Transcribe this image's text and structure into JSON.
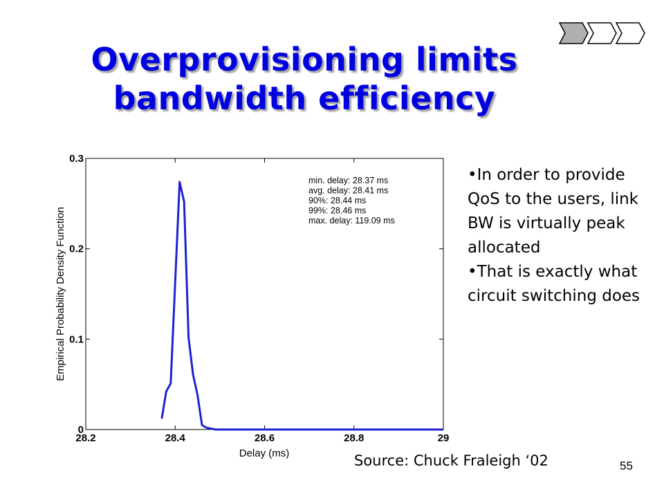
{
  "slide": {
    "title_line1": "Overprovisioning limits",
    "title_line2": "bandwidth efficiency",
    "bullets": [
      "•In order to provide QoS to the users, link BW is virtually peak allocated",
      "•That is exactly what circuit switching does"
    ],
    "source": "Source: Chuck Fraleigh ‘02",
    "page_number": "55",
    "nav_icons": [
      "chevron-block-icon",
      "chevron-block-icon",
      "chevron-block-icon"
    ],
    "colors": {
      "title": "#0000e0",
      "curve": "#2020d0",
      "nav_active": "#b0b0b0"
    }
  },
  "chart_data": {
    "type": "line",
    "xlabel": "Delay (ms)",
    "ylabel": "Empirical Probability Density Function",
    "xlim": [
      28.2,
      29
    ],
    "ylim": [
      0,
      0.3
    ],
    "xticks": [
      "28.2",
      "28.4",
      "28.6",
      "28.8",
      "29"
    ],
    "yticks": [
      "0",
      "0.1",
      "0.2",
      "0.3"
    ],
    "grid": false,
    "annotations": [
      "min. delay: 28.37 ms",
      "avg. delay: 28.41 ms",
      "90%: 28.44 ms",
      "99%: 28.46 ms",
      "max. delay: 119.09 ms"
    ],
    "x": [
      28.37,
      28.38,
      28.39,
      28.41,
      28.42,
      28.43,
      28.44,
      28.45,
      28.46,
      28.47,
      28.49,
      28.6,
      28.8,
      29
    ],
    "y": [
      0.012,
      0.042,
      0.051,
      0.274,
      0.252,
      0.102,
      0.061,
      0.038,
      0.005,
      0.002,
      0.0,
      0.0,
      0.0,
      0.0
    ]
  }
}
